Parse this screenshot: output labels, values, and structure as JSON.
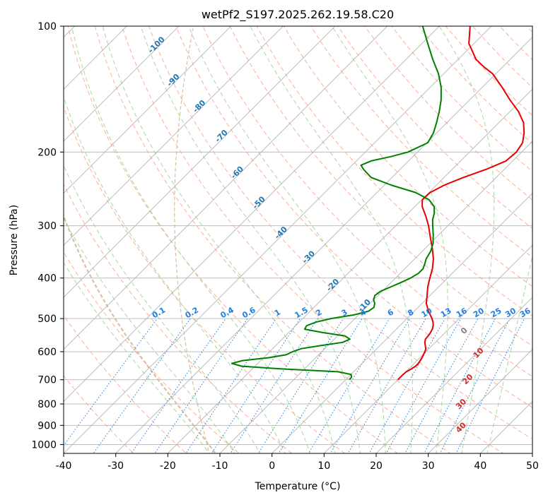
{
  "chart_data": {
    "type": "line",
    "chart_kind": "skew-T log-p diagram",
    "title": "wetPf2_S197.2025.262.19.58.C20",
    "xlabel": "Temperature (°C)",
    "ylabel": "Pressure (hPa)",
    "xlim": [
      -40,
      50
    ],
    "ylim": [
      1050,
      100
    ],
    "y_scale": "log",
    "x_ticks": [
      -40,
      -30,
      -20,
      -10,
      0,
      10,
      20,
      30,
      40,
      50
    ],
    "y_ticks": [
      1000,
      900,
      800,
      700,
      600,
      500,
      400,
      300,
      200,
      100
    ],
    "grid": true,
    "colors": {
      "temperature": "#e60000",
      "dewpoint": "#008000",
      "isotherm_grid": "#b4b4b4",
      "dry_adiabats": "#ffad95",
      "moist_adiabats": "#a8d8a0",
      "mixing_ratio": "#1e7fe0",
      "isotherm_labels": "#1f77b4",
      "wetbulb_labels": "#d62728",
      "wetbulb_zero_label": "#808080",
      "extra_curve": "#d9c2a0"
    },
    "series": [
      {
        "name": "",
        "kind": "temperature",
        "points": [
          {
            "p": 700,
            "t": 10.0
          },
          {
            "p": 690,
            "t": 10.0
          },
          {
            "p": 680,
            "t": 10.0
          },
          {
            "p": 670,
            "t": 10.1
          },
          {
            "p": 660,
            "t": 10.5
          },
          {
            "p": 650,
            "t": 10.8
          },
          {
            "p": 640,
            "t": 10.8
          },
          {
            "p": 630,
            "t": 10.6
          },
          {
            "p": 620,
            "t": 10.4
          },
          {
            "p": 610,
            "t": 10.1
          },
          {
            "p": 600,
            "t": 9.8
          },
          {
            "p": 590,
            "t": 9.4
          },
          {
            "p": 580,
            "t": 8.7
          },
          {
            "p": 570,
            "t": 8.0
          },
          {
            "p": 560,
            "t": 7.5
          },
          {
            "p": 550,
            "t": 7.4
          },
          {
            "p": 540,
            "t": 7.2
          },
          {
            "p": 530,
            "t": 6.9
          },
          {
            "p": 520,
            "t": 6.4
          },
          {
            "p": 510,
            "t": 5.7
          },
          {
            "p": 500,
            "t": 4.8
          },
          {
            "p": 480,
            "t": 2.7
          },
          {
            "p": 460,
            "t": 0.8
          },
          {
            "p": 440,
            "t": -0.6
          },
          {
            "p": 420,
            "t": -2.1
          },
          {
            "p": 400,
            "t": -3.4
          },
          {
            "p": 380,
            "t": -4.7
          },
          {
            "p": 360,
            "t": -6.4
          },
          {
            "p": 340,
            "t": -8.6
          },
          {
            "p": 320,
            "t": -11.1
          },
          {
            "p": 300,
            "t": -13.7
          },
          {
            "p": 285,
            "t": -16.0
          },
          {
            "p": 270,
            "t": -18.6
          },
          {
            "p": 260,
            "t": -19.9
          },
          {
            "p": 250,
            "t": -19.8
          },
          {
            "p": 240,
            "t": -18.5
          },
          {
            "p": 230,
            "t": -16.3
          },
          {
            "p": 220,
            "t": -13.5
          },
          {
            "p": 210,
            "t": -11.3
          },
          {
            "p": 200,
            "t": -11.0
          },
          {
            "p": 190,
            "t": -11.6
          },
          {
            "p": 180,
            "t": -13.2
          },
          {
            "p": 170,
            "t": -15.3
          },
          {
            "p": 160,
            "t": -18.4
          },
          {
            "p": 150,
            "t": -22.3
          },
          {
            "p": 140,
            "t": -26.2
          },
          {
            "p": 130,
            "t": -30.6
          },
          {
            "p": 125,
            "t": -33.7
          },
          {
            "p": 120,
            "t": -36.6
          },
          {
            "p": 110,
            "t": -41.0
          },
          {
            "p": 100,
            "t": -44.1
          }
        ]
      },
      {
        "name": "",
        "kind": "dewpoint",
        "points": [
          {
            "p": 700,
            "t": 0.7
          },
          {
            "p": 690,
            "t": 0.6
          },
          {
            "p": 680,
            "t": 0.0
          },
          {
            "p": 670,
            "t": -3.0
          },
          {
            "p": 660,
            "t": -14.0
          },
          {
            "p": 650,
            "t": -22.5
          },
          {
            "p": 640,
            "t": -25.0
          },
          {
            "p": 630,
            "t": -23.5
          },
          {
            "p": 620,
            "t": -19.0
          },
          {
            "p": 610,
            "t": -16.2
          },
          {
            "p": 600,
            "t": -15.6
          },
          {
            "p": 590,
            "t": -14.5
          },
          {
            "p": 580,
            "t": -11.3
          },
          {
            "p": 570,
            "t": -7.8
          },
          {
            "p": 560,
            "t": -7.0
          },
          {
            "p": 550,
            "t": -8.6
          },
          {
            "p": 540,
            "t": -13.5
          },
          {
            "p": 530,
            "t": -17.6
          },
          {
            "p": 520,
            "t": -17.9
          },
          {
            "p": 510,
            "t": -16.8
          },
          {
            "p": 500,
            "t": -14.6
          },
          {
            "p": 490,
            "t": -10.9
          },
          {
            "p": 480,
            "t": -8.8
          },
          {
            "p": 470,
            "t": -8.5
          },
          {
            "p": 460,
            "t": -9.1
          },
          {
            "p": 450,
            "t": -10.1
          },
          {
            "p": 440,
            "t": -10.6
          },
          {
            "p": 430,
            "t": -10.3
          },
          {
            "p": 420,
            "t": -9.2
          },
          {
            "p": 410,
            "t": -8.1
          },
          {
            "p": 400,
            "t": -7.1
          },
          {
            "p": 390,
            "t": -6.5
          },
          {
            "p": 380,
            "t": -6.5
          },
          {
            "p": 370,
            "t": -7.1
          },
          {
            "p": 360,
            "t": -7.8
          },
          {
            "p": 345,
            "t": -8.4
          },
          {
            "p": 330,
            "t": -9.5
          },
          {
            "p": 315,
            "t": -11.1
          },
          {
            "p": 300,
            "t": -12.9
          },
          {
            "p": 290,
            "t": -14.1
          },
          {
            "p": 280,
            "t": -15.0
          },
          {
            "p": 270,
            "t": -16.3
          },
          {
            "p": 260,
            "t": -18.6
          },
          {
            "p": 250,
            "t": -22.5
          },
          {
            "p": 240,
            "t": -28.6
          },
          {
            "p": 230,
            "t": -34.0
          },
          {
            "p": 220,
            "t": -37.0
          },
          {
            "p": 215,
            "t": -38.3
          },
          {
            "p": 210,
            "t": -37.2
          },
          {
            "p": 205,
            "t": -34.2
          },
          {
            "p": 200,
            "t": -31.8
          },
          {
            "p": 190,
            "t": -29.8
          },
          {
            "p": 180,
            "t": -30.6
          },
          {
            "p": 170,
            "t": -32.0
          },
          {
            "p": 160,
            "t": -33.6
          },
          {
            "p": 150,
            "t": -35.5
          },
          {
            "p": 140,
            "t": -37.9
          },
          {
            "p": 130,
            "t": -41.0
          },
          {
            "p": 120,
            "t": -44.9
          },
          {
            "p": 110,
            "t": -48.9
          },
          {
            "p": 100,
            "t": -53.2
          }
        ]
      }
    ],
    "isotherm_labels": [
      -100,
      -90,
      -80,
      -70,
      -60,
      -50,
      -40,
      -30,
      -20,
      -10
    ],
    "mixing_ratio_labels": [
      "0.1",
      "0.2",
      "0.4",
      "0.6",
      "1",
      "1.5",
      "2",
      "3",
      "4",
      "6",
      "8",
      "10",
      "13",
      "16",
      "20",
      "25",
      "30",
      "36"
    ],
    "mixing_ratio_values": [
      0.1,
      0.2,
      0.4,
      0.6,
      1,
      1.5,
      2,
      3,
      4,
      6,
      8,
      10,
      13,
      16,
      20,
      25,
      30,
      36
    ],
    "wetbulb_labels": [
      "0",
      "10",
      "20",
      "30",
      "40"
    ]
  }
}
